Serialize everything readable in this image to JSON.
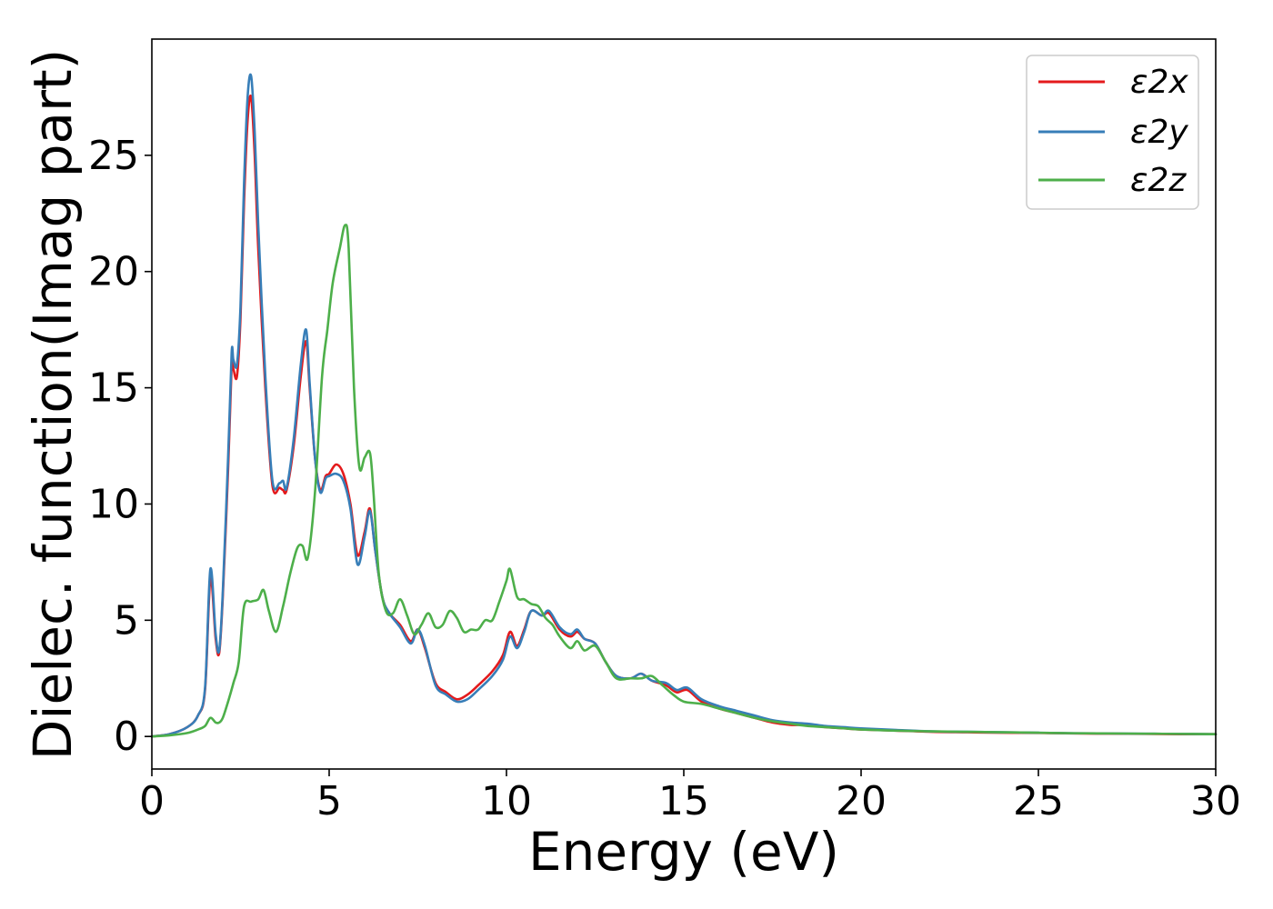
{
  "chart_data": {
    "type": "line",
    "title": "",
    "xlabel": "Energy (eV)",
    "ylabel": "Dielec. function(Imag part)",
    "xlim": [
      0,
      30
    ],
    "ylim": [
      -1.4,
      30
    ],
    "xticks": [
      0,
      5,
      10,
      15,
      20,
      25,
      30
    ],
    "yticks": [
      0,
      5,
      10,
      15,
      20,
      25
    ],
    "grid": false,
    "legend_position": "top-right",
    "series": [
      {
        "name": "ε2x",
        "color": "#e41a1c",
        "x": [
          0,
          0.5,
          1.0,
          1.3,
          1.5,
          1.65,
          1.8,
          1.9,
          2.0,
          2.15,
          2.25,
          2.3,
          2.4,
          2.5,
          2.6,
          2.7,
          2.8,
          2.9,
          3.0,
          3.2,
          3.4,
          3.6,
          3.7,
          3.8,
          4.0,
          4.2,
          4.35,
          4.45,
          4.6,
          4.75,
          4.9,
          5.0,
          5.2,
          5.4,
          5.6,
          5.8,
          6.0,
          6.15,
          6.3,
          6.5,
          6.7,
          7.0,
          7.3,
          7.5,
          7.7,
          8.0,
          8.3,
          8.6,
          8.9,
          9.2,
          9.6,
          9.9,
          10.1,
          10.3,
          10.5,
          10.7,
          11.0,
          11.2,
          11.5,
          11.8,
          12.0,
          12.2,
          12.5,
          12.8,
          13.1,
          13.5,
          13.8,
          14.1,
          14.5,
          14.8,
          15.1,
          15.5,
          16.0,
          16.5,
          17.0,
          17.5,
          18.0,
          18.5,
          19.0,
          19.5,
          20.0,
          21.0,
          22.0,
          23.0,
          24.0,
          25.0,
          26.0,
          27.0,
          28.0,
          29.0,
          30.0
        ],
        "values": [
          0.0,
          0.1,
          0.4,
          0.9,
          2.0,
          6.8,
          4.2,
          3.6,
          6.0,
          11.5,
          16.0,
          15.8,
          15.5,
          18.0,
          23.0,
          26.5,
          27.5,
          25.0,
          21.0,
          15.0,
          10.8,
          10.7,
          10.6,
          10.6,
          12.5,
          15.5,
          17.0,
          15.0,
          12.0,
          10.6,
          11.2,
          11.3,
          11.7,
          11.3,
          10.0,
          7.8,
          8.8,
          9.8,
          8.0,
          6.0,
          5.3,
          4.8,
          4.1,
          4.6,
          3.8,
          2.3,
          1.9,
          1.6,
          1.8,
          2.2,
          2.8,
          3.5,
          4.5,
          3.9,
          4.6,
          5.4,
          5.2,
          5.3,
          4.6,
          4.3,
          4.5,
          4.2,
          4.0,
          3.2,
          2.6,
          2.5,
          2.7,
          2.4,
          2.2,
          1.9,
          2.0,
          1.5,
          1.2,
          1.0,
          0.8,
          0.6,
          0.5,
          0.5,
          0.4,
          0.35,
          0.3,
          0.25,
          0.2,
          0.18,
          0.16,
          0.15,
          0.13,
          0.12,
          0.11,
          0.1,
          0.1
        ]
      },
      {
        "name": "ε2y",
        "color": "#377eb8",
        "x": [
          0,
          0.5,
          1.0,
          1.3,
          1.5,
          1.65,
          1.8,
          1.9,
          2.0,
          2.15,
          2.25,
          2.3,
          2.4,
          2.5,
          2.6,
          2.7,
          2.8,
          2.9,
          3.0,
          3.2,
          3.4,
          3.6,
          3.7,
          3.8,
          4.0,
          4.2,
          4.35,
          4.45,
          4.6,
          4.75,
          4.9,
          5.0,
          5.2,
          5.4,
          5.6,
          5.8,
          6.0,
          6.15,
          6.3,
          6.5,
          6.7,
          7.0,
          7.3,
          7.5,
          7.7,
          8.0,
          8.3,
          8.6,
          8.9,
          9.2,
          9.6,
          9.9,
          10.1,
          10.3,
          10.5,
          10.7,
          11.0,
          11.2,
          11.5,
          11.8,
          12.0,
          12.2,
          12.5,
          12.8,
          13.1,
          13.5,
          13.8,
          14.1,
          14.5,
          14.8,
          15.1,
          15.5,
          16.0,
          16.5,
          17.0,
          17.5,
          18.0,
          18.5,
          19.0,
          19.5,
          20.0,
          21.0,
          22.0,
          23.0,
          24.0,
          25.0,
          26.0,
          27.0,
          28.0,
          29.0,
          30.0
        ],
        "values": [
          0.0,
          0.1,
          0.4,
          0.9,
          2.1,
          7.2,
          4.4,
          3.7,
          6.2,
          12.0,
          16.5,
          16.2,
          16.0,
          18.5,
          23.8,
          27.5,
          28.4,
          26.0,
          22.0,
          15.5,
          11.0,
          10.9,
          11.0,
          10.7,
          12.8,
          16.0,
          17.5,
          15.2,
          12.0,
          10.5,
          11.1,
          11.2,
          11.3,
          11.0,
          9.8,
          7.4,
          8.6,
          9.7,
          8.0,
          6.0,
          5.3,
          4.7,
          4.0,
          4.6,
          3.9,
          2.2,
          1.8,
          1.5,
          1.6,
          2.0,
          2.6,
          3.3,
          4.3,
          3.8,
          4.5,
          5.4,
          5.2,
          5.4,
          4.7,
          4.4,
          4.6,
          4.2,
          4.0,
          3.2,
          2.6,
          2.5,
          2.7,
          2.4,
          2.3,
          2.0,
          2.1,
          1.6,
          1.3,
          1.1,
          0.9,
          0.7,
          0.6,
          0.55,
          0.45,
          0.4,
          0.35,
          0.28,
          0.22,
          0.2,
          0.18,
          0.16,
          0.14,
          0.13,
          0.12,
          0.11,
          0.1
        ]
      },
      {
        "name": "ε2z",
        "color": "#4daf4a",
        "x": [
          0,
          0.5,
          1.0,
          1.3,
          1.5,
          1.65,
          1.8,
          1.9,
          2.0,
          2.15,
          2.3,
          2.45,
          2.6,
          2.8,
          3.0,
          3.15,
          3.3,
          3.5,
          3.7,
          3.9,
          4.1,
          4.25,
          4.4,
          4.6,
          4.8,
          4.95,
          5.1,
          5.3,
          5.45,
          5.55,
          5.7,
          5.85,
          6.0,
          6.15,
          6.25,
          6.4,
          6.6,
          6.8,
          7.0,
          7.2,
          7.4,
          7.6,
          7.8,
          8.0,
          8.2,
          8.4,
          8.6,
          8.8,
          9.0,
          9.2,
          9.4,
          9.6,
          9.8,
          10.0,
          10.1,
          10.3,
          10.5,
          10.7,
          10.9,
          11.1,
          11.3,
          11.5,
          11.8,
          12.0,
          12.2,
          12.5,
          12.8,
          13.1,
          13.5,
          13.8,
          14.1,
          14.4,
          14.7,
          15.0,
          15.5,
          16.0,
          16.5,
          17.0,
          17.5,
          18.0,
          18.5,
          19.0,
          19.5,
          20.0,
          21.0,
          22.0,
          23.0,
          24.0,
          25.0,
          26.0,
          27.0,
          28.0,
          29.0,
          30.0
        ],
        "values": [
          0.0,
          0.05,
          0.15,
          0.3,
          0.45,
          0.8,
          0.6,
          0.6,
          0.8,
          1.5,
          2.3,
          3.2,
          5.6,
          5.8,
          5.9,
          6.3,
          5.4,
          4.5,
          5.6,
          7.0,
          8.1,
          8.2,
          7.7,
          10.5,
          15.5,
          17.5,
          19.5,
          21.0,
          22.0,
          21.0,
          15.0,
          11.6,
          12.0,
          12.2,
          10.5,
          7.0,
          5.4,
          5.3,
          5.9,
          5.2,
          4.4,
          4.8,
          5.3,
          4.7,
          4.8,
          5.4,
          5.1,
          4.5,
          4.6,
          4.6,
          5.0,
          5.0,
          5.8,
          6.7,
          7.2,
          6.0,
          5.9,
          5.7,
          5.6,
          5.1,
          4.8,
          4.3,
          3.8,
          4.1,
          3.7,
          3.9,
          3.2,
          2.5,
          2.5,
          2.5,
          2.6,
          2.2,
          1.8,
          1.5,
          1.4,
          1.2,
          1.0,
          0.8,
          0.65,
          0.55,
          0.45,
          0.4,
          0.35,
          0.3,
          0.25,
          0.22,
          0.2,
          0.18,
          0.16,
          0.14,
          0.13,
          0.12,
          0.11,
          0.1
        ]
      }
    ]
  }
}
